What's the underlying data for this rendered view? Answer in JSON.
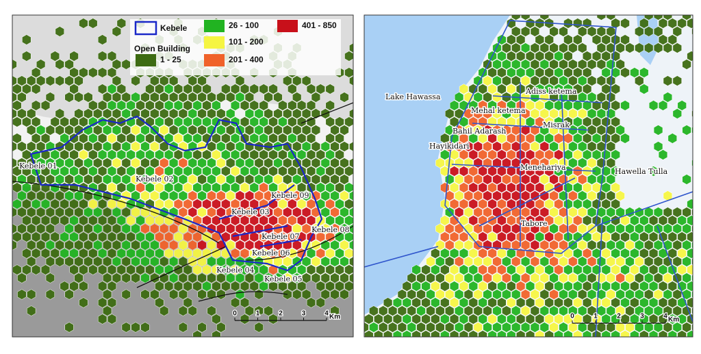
{
  "legend": {
    "boundary": "Kebele",
    "group_title": "Open Building",
    "classes": [
      {
        "label": "1 - 25",
        "color": "#3d6b12"
      },
      {
        "label": "26 - 100",
        "color": "#21b321"
      },
      {
        "label": "101 - 200",
        "color": "#f5f542"
      },
      {
        "label": "201 - 400",
        "color": "#f0622a"
      },
      {
        "label": "401 - 850",
        "color": "#c8101a"
      }
    ]
  },
  "left_map": {
    "labels": [
      "Kebele 01",
      "Kebele 02",
      "Kebele 03",
      "Kebele 09",
      "Kebele 07",
      "Kebele 08",
      "Kebele 06",
      "Kebele 04",
      "Kebele 05"
    ],
    "scale": {
      "ticks": [
        "0",
        "1",
        "2",
        "3",
        "4"
      ],
      "unit": "Km"
    }
  },
  "right_map": {
    "labels": [
      "Lake Hawassa",
      "Adiss ketema",
      "Mehal ketema",
      "Misrak",
      "Bahil Adarash",
      "Hayikidari",
      "Menehariya",
      "Hawella Tulla",
      "Tabore"
    ],
    "scale": {
      "ticks": [
        "0",
        "1",
        "2",
        "3",
        "4"
      ],
      "unit": "Km"
    }
  }
}
